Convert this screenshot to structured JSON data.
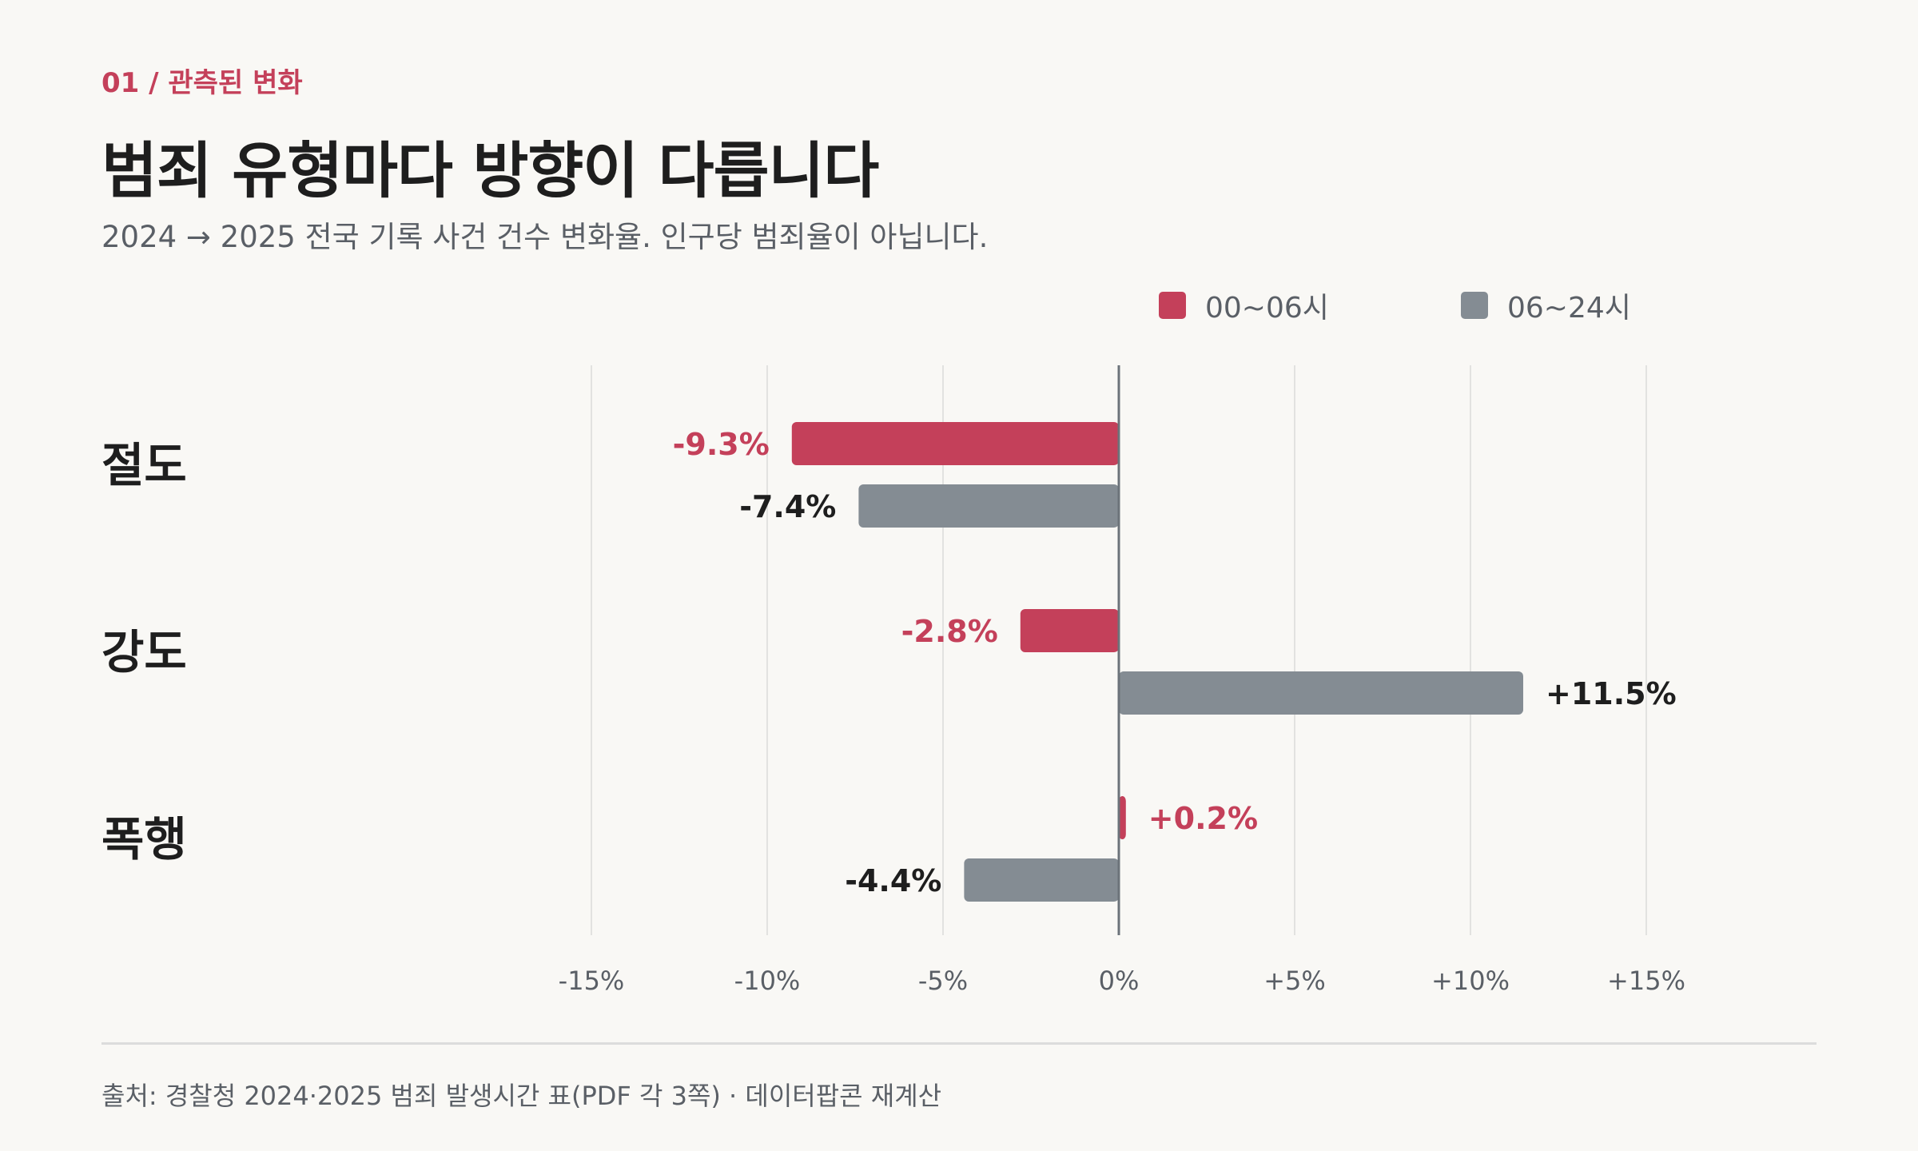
{
  "header": {
    "eyebrow": "01 / 관측된 변화",
    "title": "범죄 유형마다 방향이 다릅니다",
    "subtitle": "2024 → 2025 전국 기록 사건 건수 변화율. 인구당 범죄율이 아닙니다."
  },
  "legend": [
    {
      "label": "00~06시",
      "color": "#c4405a"
    },
    {
      "label": "06~24시",
      "color": "#848c93"
    }
  ],
  "chart_data": {
    "type": "bar",
    "orientation": "horizontal",
    "categories": [
      "절도",
      "강도",
      "폭행"
    ],
    "series": [
      {
        "name": "00~06시",
        "color": "#c4405a",
        "label_color": "#c4405a",
        "values": [
          -9.3,
          -2.8,
          0.2
        ],
        "labels": [
          "-9.3%",
          "-2.8%",
          "+0.2%"
        ]
      },
      {
        "name": "06~24시",
        "color": "#848c93",
        "label_color": "#1e1e1e",
        "values": [
          -7.4,
          11.5,
          -4.4
        ],
        "labels": [
          "-7.4%",
          "+11.5%",
          "-4.4%"
        ]
      }
    ],
    "xlim": [
      -15,
      15
    ],
    "ticks": [
      -15,
      -10,
      -5,
      0,
      5,
      10,
      15
    ],
    "tick_labels": [
      "-15%",
      "-10%",
      "-5%",
      "0%",
      "+5%",
      "+10%",
      "+15%"
    ],
    "grid": true,
    "legend_position": "top-right"
  },
  "footer": {
    "source": "출처: 경찰청 2024·2025 범죄 발생시간 표(PDF 각 3쪽) · 데이터팝콘 재계산"
  }
}
